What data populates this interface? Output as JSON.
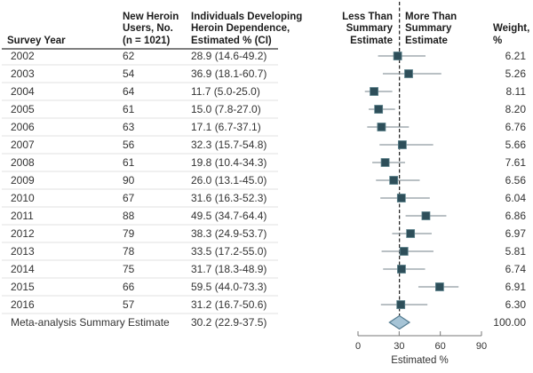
{
  "table": {
    "headers": {
      "year": "Survey Year",
      "users": "New Heroin\nUsers, No.\n(n = 1021)",
      "ci": "Individuals Developing\nHeroin Dependence,\nEstimated % (CI)",
      "less_than": "Less Than\nSummary\nEstimate",
      "more_than": "More Than\nSummary\nEstimate",
      "weight": "Weight,\n%"
    }
  },
  "colors": {
    "marker": "#2e4f5a",
    "marker_edge": "#5c828c",
    "ci_line": "#8f9aa0",
    "diamond_fill": "#a6c4d6",
    "diamond_stroke": "#567d92",
    "dashed_line": "#2b2b2b",
    "row_separator": "#e0e0e0",
    "header_rule": "#555555",
    "axis": "#777777",
    "text": "#333333"
  },
  "chart_data": {
    "type": "forest",
    "xlabel": "Estimated %",
    "xlim": [
      0,
      90
    ],
    "x_ticks": [
      0,
      30,
      60,
      90
    ],
    "summary_line_x": 30.2,
    "rows": [
      {
        "year": "2002",
        "users": "62",
        "ci_text": "28.9 (14.6-49.2)",
        "est": 28.9,
        "lo": 14.6,
        "hi": 49.2,
        "weight": "6.21"
      },
      {
        "year": "2003",
        "users": "54",
        "ci_text": "36.9 (18.1-60.7)",
        "est": 36.9,
        "lo": 18.1,
        "hi": 60.7,
        "weight": "5.26"
      },
      {
        "year": "2004",
        "users": "64",
        "ci_text": "11.7 (5.0-25.0)",
        "est": 11.7,
        "lo": 5.0,
        "hi": 25.0,
        "weight": "8.11"
      },
      {
        "year": "2005",
        "users": "61",
        "ci_text": "15.0 (7.8-27.0)",
        "est": 15.0,
        "lo": 7.8,
        "hi": 27.0,
        "weight": "8.20"
      },
      {
        "year": "2006",
        "users": "63",
        "ci_text": "17.1 (6.7-37.1)",
        "est": 17.1,
        "lo": 6.7,
        "hi": 37.1,
        "weight": "6.76"
      },
      {
        "year": "2007",
        "users": "56",
        "ci_text": "32.3 (15.7-54.8)",
        "est": 32.3,
        "lo": 15.7,
        "hi": 54.8,
        "weight": "5.66"
      },
      {
        "year": "2008",
        "users": "61",
        "ci_text": "19.8 (10.4-34.3)",
        "est": 19.8,
        "lo": 10.4,
        "hi": 34.3,
        "weight": "7.61"
      },
      {
        "year": "2009",
        "users": "90",
        "ci_text": "26.0 (13.1-45.0)",
        "est": 26.0,
        "lo": 13.1,
        "hi": 45.0,
        "weight": "6.56"
      },
      {
        "year": "2010",
        "users": "67",
        "ci_text": "31.6 (16.3-52.3)",
        "est": 31.6,
        "lo": 16.3,
        "hi": 52.3,
        "weight": "6.04"
      },
      {
        "year": "2011",
        "users": "88",
        "ci_text": "49.5 (34.7-64.4)",
        "est": 49.5,
        "lo": 34.7,
        "hi": 64.4,
        "weight": "6.86"
      },
      {
        "year": "2012",
        "users": "79",
        "ci_text": "38.3 (24.9-53.7)",
        "est": 38.3,
        "lo": 24.9,
        "hi": 53.7,
        "weight": "6.97"
      },
      {
        "year": "2013",
        "users": "78",
        "ci_text": "33.5 (17.2-55.0)",
        "est": 33.5,
        "lo": 17.2,
        "hi": 55.0,
        "weight": "5.81"
      },
      {
        "year": "2014",
        "users": "75",
        "ci_text": "31.7 (18.3-48.9)",
        "est": 31.7,
        "lo": 18.3,
        "hi": 48.9,
        "weight": "6.74"
      },
      {
        "year": "2015",
        "users": "66",
        "ci_text": "59.5 (44.0-73.3)",
        "est": 59.5,
        "lo": 44.0,
        "hi": 73.3,
        "weight": "6.91"
      },
      {
        "year": "2016",
        "users": "57",
        "ci_text": "31.2 (16.7-50.6)",
        "est": 31.2,
        "lo": 16.7,
        "hi": 50.6,
        "weight": "6.30"
      }
    ],
    "summary": {
      "label": "Meta-analysis Summary Estimate",
      "ci_text": "30.2 (22.9-37.5)",
      "est": 30.2,
      "lo": 22.9,
      "hi": 37.5,
      "weight": "100.00"
    }
  }
}
